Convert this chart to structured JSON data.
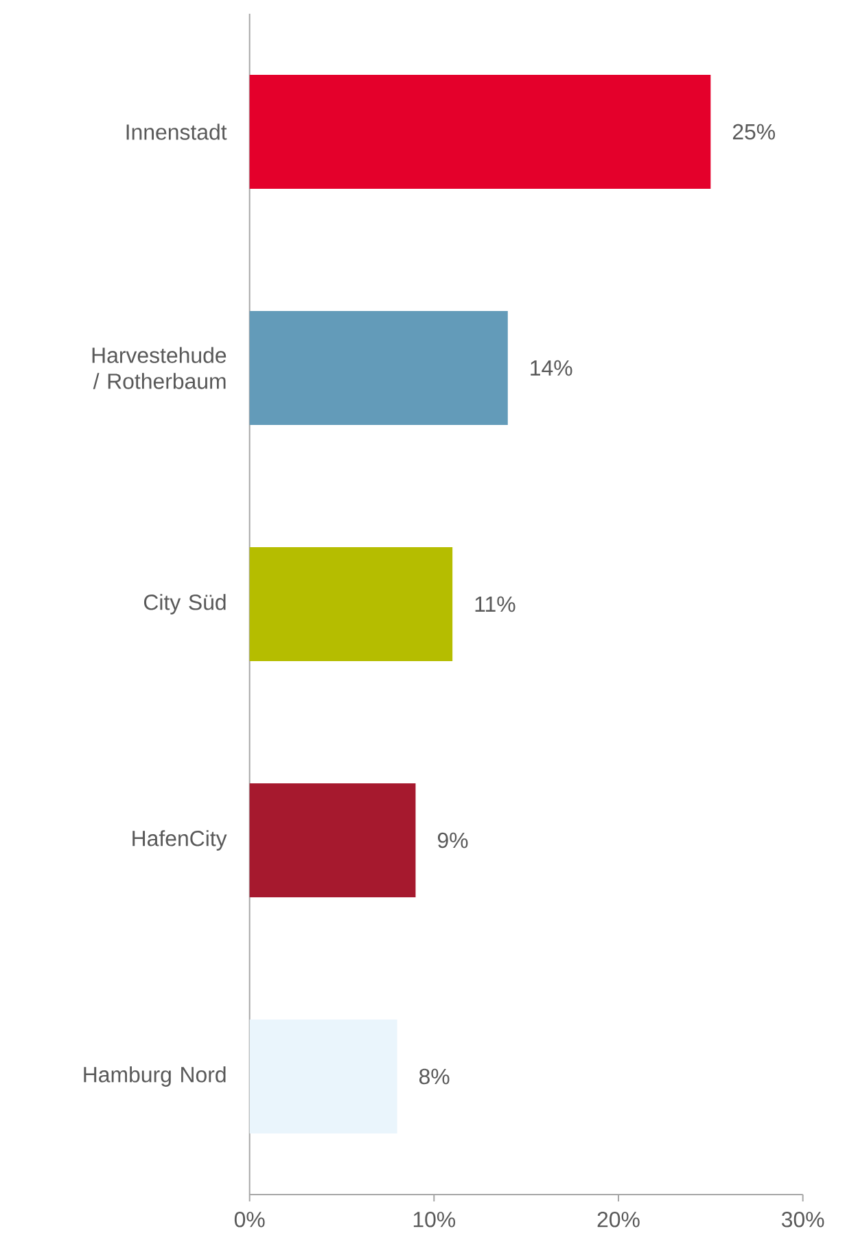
{
  "chart_data": {
    "type": "bar",
    "orientation": "horizontal",
    "categories": [
      "Innenstadt",
      "Harvestehude / Rotherbaum",
      "City Süd",
      "HafenCity",
      "Hamburg Nord"
    ],
    "values": [
      25,
      14,
      11,
      9,
      8
    ],
    "value_labels": [
      "25%",
      "14%",
      "11%",
      "9%",
      "8%"
    ],
    "colors": [
      "#e4002b",
      "#639bb9",
      "#b5bd00",
      "#a6192e",
      "#eaf5fc"
    ],
    "xlim": [
      0,
      30
    ],
    "xticks": [
      {
        "value": 0,
        "label": "0%"
      },
      {
        "value": 10,
        "label": "10%"
      },
      {
        "value": 20,
        "label": "20%"
      },
      {
        "value": 30,
        "label": "30%"
      }
    ]
  }
}
